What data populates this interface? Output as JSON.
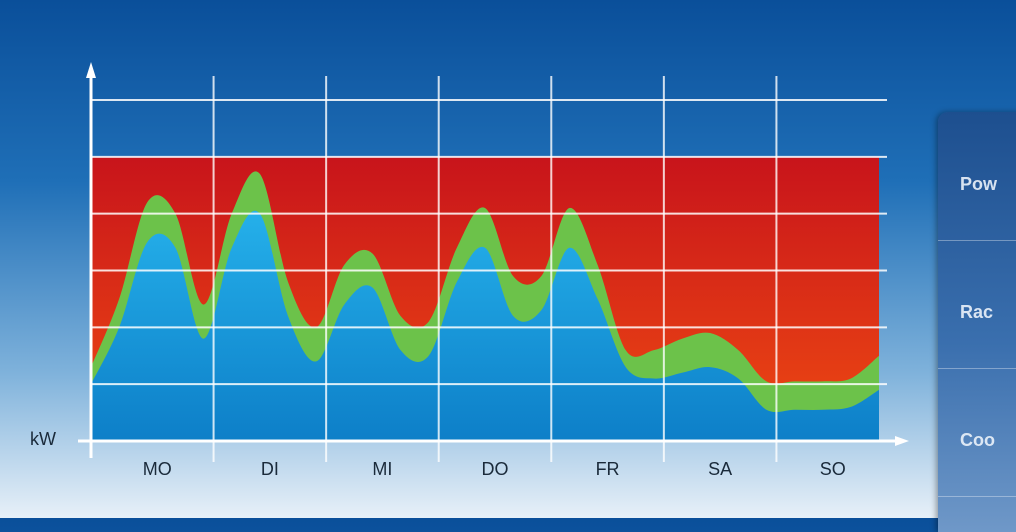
{
  "chart_data": {
    "type": "area",
    "ylabel": "kW",
    "xlabel": "",
    "categories": [
      "MO",
      "DI",
      "MI",
      "DO",
      "FR",
      "SA",
      "SO"
    ],
    "y_gridlines": 6,
    "grid": true,
    "background_band": {
      "name": "capacity",
      "color": "#d42a1a",
      "to_level": 5
    },
    "x": [
      0.0,
      0.25,
      0.5,
      0.75,
      1.0,
      1.25,
      1.5,
      1.75,
      2.0,
      2.25,
      2.5,
      2.75,
      3.0,
      3.25,
      3.5,
      3.75,
      4.0,
      4.25,
      4.5,
      4.75,
      5.0,
      5.25,
      5.5,
      5.75,
      6.0,
      6.25,
      6.5,
      6.75,
      7.0
    ],
    "series": [
      {
        "color": "#1aa3e0",
        "values": [
          1.0,
          2.0,
          3.5,
          3.4,
          1.8,
          3.4,
          4.0,
          2.2,
          1.4,
          2.4,
          2.7,
          1.6,
          1.5,
          2.8,
          3.4,
          2.2,
          2.3,
          3.4,
          2.5,
          1.3,
          1.1,
          1.2,
          1.3,
          1.1,
          0.55,
          0.55,
          0.55,
          0.6,
          0.9
        ]
      },
      {
        "color": "#6cc24a",
        "values": [
          1.3,
          2.5,
          4.2,
          4.0,
          2.4,
          4.0,
          4.7,
          2.8,
          2.0,
          3.1,
          3.3,
          2.2,
          2.1,
          3.4,
          4.1,
          2.9,
          2.9,
          4.1,
          3.1,
          1.6,
          1.6,
          1.8,
          1.9,
          1.6,
          1.05,
          1.05,
          1.05,
          1.1,
          1.5
        ]
      }
    ]
  },
  "side_panel": {
    "rows": [
      "Pow",
      "Rac",
      "Coo"
    ]
  }
}
